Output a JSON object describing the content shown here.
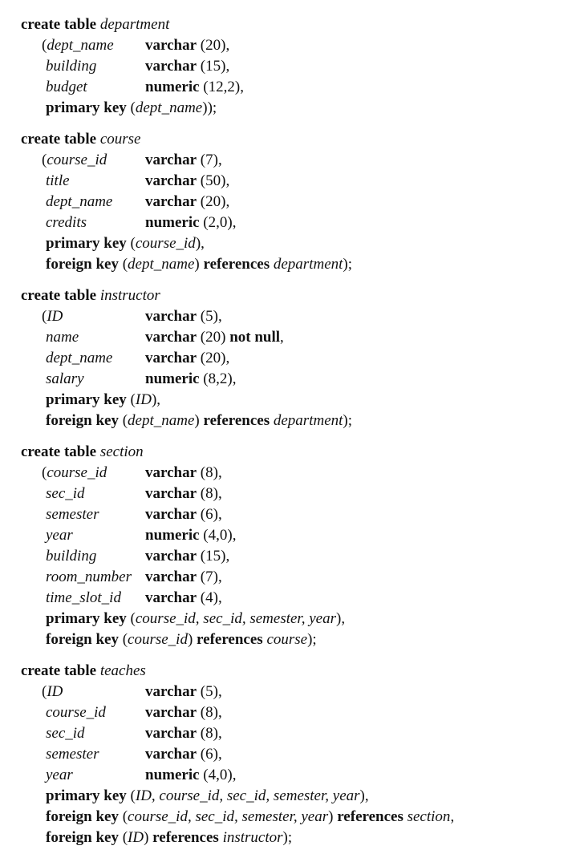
{
  "tables": [
    {
      "name": "department",
      "columns": [
        {
          "name": "dept_name",
          "type": "varchar",
          "args": "(20)",
          "extra": ""
        },
        {
          "name": "building",
          "type": "varchar",
          "args": "(15)",
          "extra": ""
        },
        {
          "name": "budget",
          "type": "numeric",
          "args": "(12,2)",
          "extra": ""
        }
      ],
      "constraints": [
        {
          "kind": "primary key",
          "cols": "dept_name",
          "ref": ""
        }
      ]
    },
    {
      "name": "course",
      "columns": [
        {
          "name": "course_id",
          "type": "varchar",
          "args": "(7)",
          "extra": ""
        },
        {
          "name": "title",
          "type": "varchar",
          "args": "(50)",
          "extra": ""
        },
        {
          "name": "dept_name",
          "type": "varchar",
          "args": "(20)",
          "extra": ""
        },
        {
          "name": "credits",
          "type": "numeric",
          "args": "(2,0)",
          "extra": ""
        }
      ],
      "constraints": [
        {
          "kind": "primary key",
          "cols": "course_id",
          "ref": ""
        },
        {
          "kind": "foreign key",
          "cols": "dept_name",
          "ref": "department"
        }
      ]
    },
    {
      "name": "instructor",
      "columns": [
        {
          "name": "ID",
          "type": "varchar",
          "args": "(5)",
          "extra": ""
        },
        {
          "name": "name",
          "type": "varchar",
          "args": "(20)",
          "extra": "not null"
        },
        {
          "name": "dept_name",
          "type": "varchar",
          "args": "(20)",
          "extra": ""
        },
        {
          "name": "salary",
          "type": "numeric",
          "args": "(8,2)",
          "extra": ""
        }
      ],
      "constraints": [
        {
          "kind": "primary key",
          "cols": "ID",
          "ref": ""
        },
        {
          "kind": "foreign key",
          "cols": "dept_name",
          "ref": "department"
        }
      ]
    },
    {
      "name": "section",
      "columns": [
        {
          "name": "course_id",
          "type": "varchar",
          "args": "(8)",
          "extra": ""
        },
        {
          "name": "sec_id",
          "type": "varchar",
          "args": "(8)",
          "extra": ""
        },
        {
          "name": "semester",
          "type": "varchar",
          "args": "(6)",
          "extra": ""
        },
        {
          "name": "year",
          "type": "numeric",
          "args": "(4,0)",
          "extra": ""
        },
        {
          "name": "building",
          "type": "varchar",
          "args": "(15)",
          "extra": ""
        },
        {
          "name": "room_number",
          "type": "varchar",
          "args": "(7)",
          "extra": ""
        },
        {
          "name": "time_slot_id",
          "type": "varchar",
          "args": "(4)",
          "extra": ""
        }
      ],
      "constraints": [
        {
          "kind": "primary key",
          "cols": "course_id, sec_id, semester, year",
          "ref": ""
        },
        {
          "kind": "foreign key",
          "cols": "course_id",
          "ref": "course"
        }
      ]
    },
    {
      "name": "teaches",
      "columns": [
        {
          "name": "ID",
          "type": "varchar",
          "args": "(5)",
          "extra": ""
        },
        {
          "name": "course_id",
          "type": "varchar",
          "args": "(8)",
          "extra": ""
        },
        {
          "name": "sec_id",
          "type": "varchar",
          "args": "(8)",
          "extra": ""
        },
        {
          "name": "semester",
          "type": "varchar",
          "args": "(6)",
          "extra": ""
        },
        {
          "name": "year",
          "type": "numeric",
          "args": "(4,0)",
          "extra": ""
        }
      ],
      "constraints": [
        {
          "kind": "primary key",
          "cols": "ID, course_id, sec_id, semester, year",
          "ref": ""
        },
        {
          "kind": "foreign key",
          "cols": "course_id, sec_id, semester, year",
          "ref": "section"
        },
        {
          "kind": "foreign key",
          "cols": "ID",
          "ref": "instructor"
        }
      ]
    }
  ],
  "keywords": {
    "create_table": "create table",
    "references": "references"
  }
}
